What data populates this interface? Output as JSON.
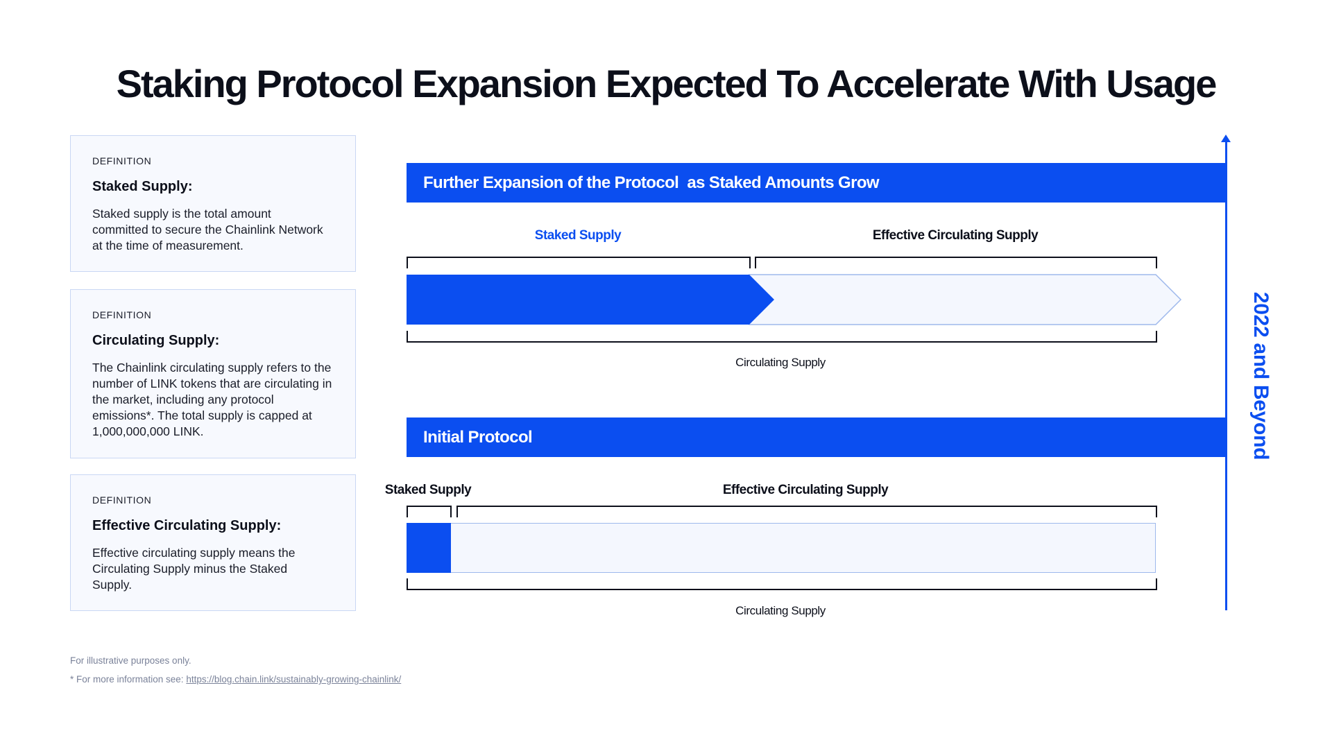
{
  "title": "Staking Protocol Expansion Expected To Accelerate With Usage",
  "definitions": [
    {
      "eyebrow": "DEFINITION",
      "term": "Staked Supply:",
      "body": "Staked supply is the total amount committed to secure the Chainlink Network at the time of measurement."
    },
    {
      "eyebrow": "DEFINITION",
      "term": "Circulating Supply:",
      "body": "The Chainlink circulating supply refers to the number of LINK tokens that are circulating in the market, including any protocol emissions*. The total supply is capped at 1,000,000,000 LINK."
    },
    {
      "eyebrow": "DEFINITION",
      "term": "Effective Circulating Supply:",
      "body": "Effective circulating supply means the Circulating Supply minus the Staked Supply."
    }
  ],
  "stages": {
    "expansion": {
      "banner": "Further Expansion of the Protocol  as Staked Amounts Grow",
      "staked_label": "Staked Supply",
      "effective_label": "Effective Circulating Supply",
      "circulating_label": "Circulating Supply"
    },
    "initial": {
      "banner": "Initial Protocol",
      "staked_label": "Staked Supply",
      "effective_label": "Effective Circulating Supply",
      "circulating_label": "Circulating Supply"
    }
  },
  "timeline": {
    "label": "2022 and Beyond"
  },
  "footnotes": {
    "disclaimer": "For illustrative purposes only.",
    "more_info_prefix": "* For more information see: ",
    "link_text": "https://blog.chain.link/sustainably-growing-chainlink/"
  },
  "colors": {
    "accent": "#0b4ef0",
    "light_fill": "#f4f7fe",
    "card_border": "#c9d7f4",
    "text": "#0c0f1a"
  }
}
